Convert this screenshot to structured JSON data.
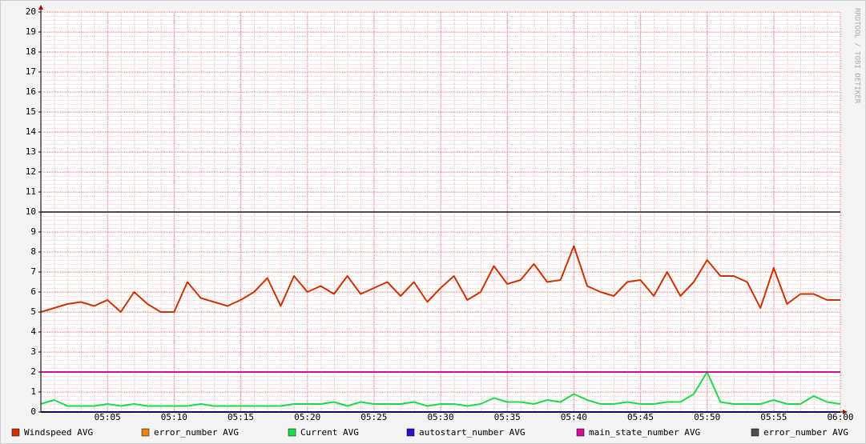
{
  "chart_data": {
    "type": "line",
    "watermark": "RRDTOOL / TOBI OETIKER",
    "x": [
      null,
      null,
      null,
      null,
      null,
      "05:05",
      null,
      null,
      null,
      null,
      "05:10",
      null,
      null,
      null,
      null,
      "05:15",
      null,
      null,
      null,
      null,
      "05:20",
      null,
      null,
      null,
      null,
      "05:25",
      null,
      null,
      null,
      null,
      "05:30",
      null,
      null,
      null,
      null,
      "05:35",
      null,
      null,
      null,
      null,
      "05:40",
      null,
      null,
      null,
      null,
      "05:45",
      null,
      null,
      null,
      null,
      "05:50",
      null,
      null,
      null,
      null,
      "05:55",
      null,
      null,
      null,
      null,
      "06:00"
    ],
    "ylim": [
      0,
      20
    ],
    "yticks": [
      0,
      1,
      2,
      3,
      4,
      5,
      6,
      7,
      8,
      9,
      10,
      11,
      12,
      13,
      14,
      15,
      16,
      17,
      18,
      19,
      20
    ],
    "grid": true,
    "series": [
      {
        "name": "Windspeed AVG",
        "color": "#cc3300",
        "values": [
          5.0,
          5.2,
          5.4,
          5.5,
          5.3,
          5.6,
          5.0,
          6.0,
          5.4,
          5.0,
          5.0,
          6.5,
          5.7,
          5.5,
          5.3,
          5.6,
          6.0,
          6.7,
          5.3,
          6.8,
          6.0,
          6.3,
          5.9,
          6.8,
          5.9,
          6.2,
          6.5,
          5.8,
          6.5,
          5.5,
          6.2,
          6.8,
          5.6,
          6.0,
          7.3,
          6.4,
          6.6,
          7.4,
          6.5,
          6.6,
          8.3,
          6.3,
          6.0,
          5.8,
          6.5,
          6.6,
          5.8,
          7.0,
          5.8,
          6.5,
          7.6,
          6.8,
          6.8,
          6.5,
          5.2,
          7.2,
          5.4,
          5.9,
          5.9,
          5.6,
          5.6
        ]
      },
      {
        "name": "error_number AVG",
        "color": "#e8820c",
        "values": [
          0,
          0,
          0,
          0,
          0,
          0,
          0,
          0,
          0,
          0,
          0,
          0,
          0,
          0,
          0,
          0,
          0,
          0,
          0,
          0,
          0,
          0,
          0,
          0,
          0,
          0,
          0,
          0,
          0,
          0,
          0,
          0,
          0,
          0,
          0,
          0,
          0,
          0,
          0,
          0,
          0,
          0,
          0,
          0,
          0,
          0,
          0,
          0,
          0,
          0,
          0,
          0,
          0,
          0,
          0,
          0,
          0,
          0,
          0,
          0,
          0
        ]
      },
      {
        "name": "Current AVG",
        "color": "#1ed94a",
        "values": [
          0.4,
          0.6,
          0.3,
          0.3,
          0.3,
          0.4,
          0.3,
          0.4,
          0.3,
          0.3,
          0.3,
          0.3,
          0.4,
          0.3,
          0.3,
          0.3,
          0.3,
          0.3,
          0.3,
          0.4,
          0.4,
          0.4,
          0.5,
          0.3,
          0.5,
          0.4,
          0.4,
          0.4,
          0.5,
          0.3,
          0.4,
          0.4,
          0.3,
          0.4,
          0.7,
          0.5,
          0.5,
          0.4,
          0.6,
          0.5,
          0.9,
          0.6,
          0.4,
          0.4,
          0.5,
          0.4,
          0.4,
          0.5,
          0.5,
          0.9,
          2.0,
          0.5,
          0.4,
          0.4,
          0.4,
          0.6,
          0.4,
          0.4,
          0.8,
          0.5,
          0.4
        ]
      },
      {
        "name": "autostart_number AVG",
        "color": "#2414c8",
        "values": [
          0,
          0,
          0,
          0,
          0,
          0,
          0,
          0,
          0,
          0,
          0,
          0,
          0,
          0,
          0,
          0,
          0,
          0,
          0,
          0,
          0,
          0,
          0,
          0,
          0,
          0,
          0,
          0,
          0,
          0,
          0,
          0,
          0,
          0,
          0,
          0,
          0,
          0,
          0,
          0,
          0,
          0,
          0,
          0,
          0,
          0,
          0,
          0,
          0,
          0,
          0,
          0,
          0,
          0,
          0,
          0,
          0,
          0,
          0,
          0,
          0
        ]
      },
      {
        "name": "main_state_number AVG",
        "color": "#d0109a",
        "values": [
          2,
          2,
          2,
          2,
          2,
          2,
          2,
          2,
          2,
          2,
          2,
          2,
          2,
          2,
          2,
          2,
          2,
          2,
          2,
          2,
          2,
          2,
          2,
          2,
          2,
          2,
          2,
          2,
          2,
          2,
          2,
          2,
          2,
          2,
          2,
          2,
          2,
          2,
          2,
          2,
          2,
          2,
          2,
          2,
          2,
          2,
          2,
          2,
          2,
          2,
          2,
          2,
          2,
          2,
          2,
          2,
          2,
          2,
          2,
          2,
          2
        ]
      },
      {
        "name": "error_number AVG",
        "color": "#4d4d4d",
        "values": [
          10,
          10,
          10,
          10,
          10,
          10,
          10,
          10,
          10,
          10,
          10,
          10,
          10,
          10,
          10,
          10,
          10,
          10,
          10,
          10,
          10,
          10,
          10,
          10,
          10,
          10,
          10,
          10,
          10,
          10,
          10,
          10,
          10,
          10,
          10,
          10,
          10,
          10,
          10,
          10,
          10,
          10,
          10,
          10,
          10,
          10,
          10,
          10,
          10,
          10,
          10,
          10,
          10,
          10,
          10,
          10,
          10,
          10,
          10,
          10,
          10
        ]
      }
    ]
  }
}
